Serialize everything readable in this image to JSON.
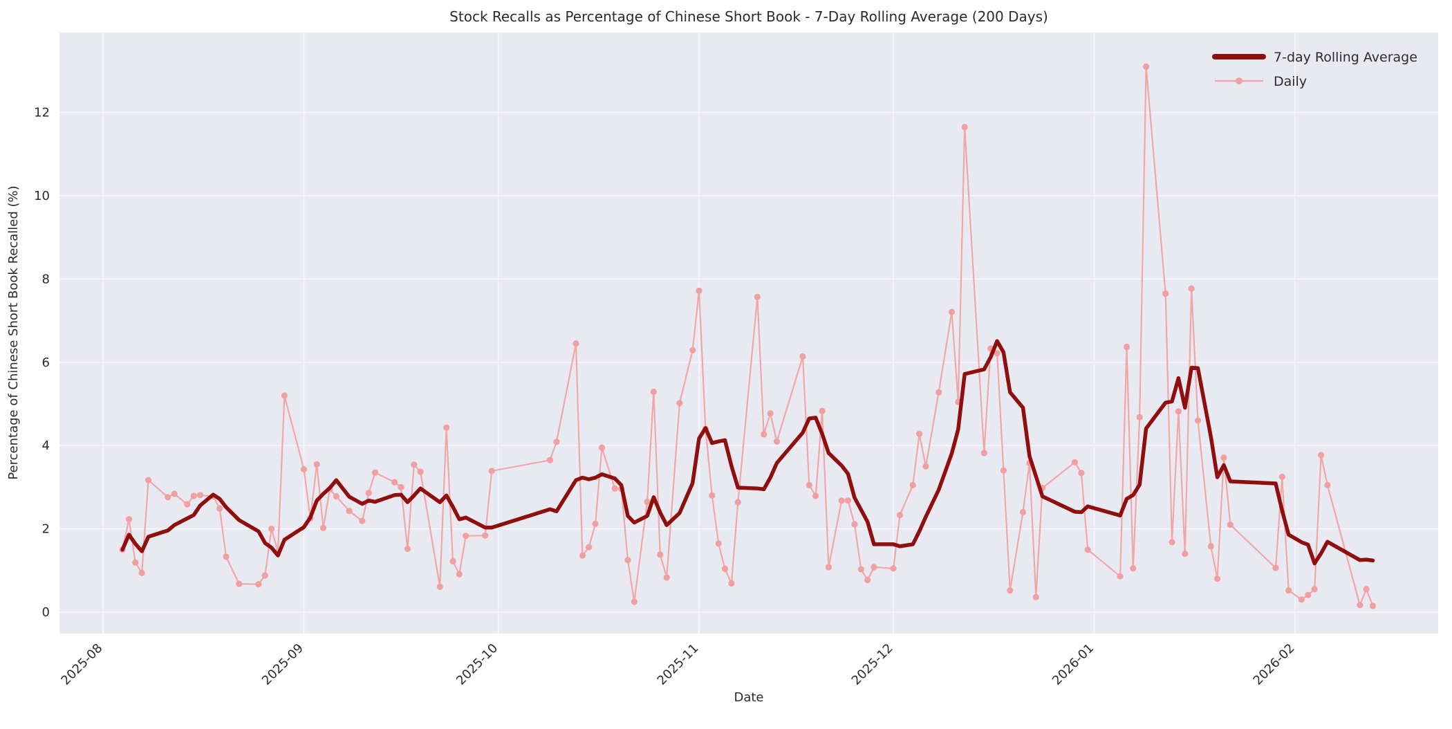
{
  "figure": {
    "title": "Stock Recalls as Percentage of Chinese Short Book - 7-Day Rolling Average (200 Days)",
    "xlabel": "Date",
    "ylabel": "Percentage of Chinese Short Book Recalled (%)"
  },
  "legend": {
    "items": [
      {
        "label": "7-day Rolling Average",
        "swatch": "thick-line",
        "color": "#8f0f0f"
      },
      {
        "label": "Daily",
        "swatch": "line-with-marker",
        "color": "#f1a7a7"
      }
    ]
  },
  "colors": {
    "figure_background": "#ffffff",
    "plot_background": "#e9e9f2",
    "gridline": "#f7f7fb",
    "rolling_line": "#8f0f0f",
    "daily_line": "#f1a7a7",
    "daily_marker": "#efa0a0",
    "text": "#2b2b2b"
  },
  "chart_data": {
    "type": "line",
    "title": "Stock Recalls as Percentage of Chinese Short Book - 7-Day Rolling Average (200 Days)",
    "xlabel": "Date",
    "ylabel": "Percentage of Chinese Short Book Recalled (%)",
    "grid": true,
    "legend_position": "upper right",
    "ylim": [
      -0.5,
      13.9
    ],
    "y_ticks": [
      0,
      2,
      4,
      6,
      8,
      10,
      12
    ],
    "x_tick_labels": [
      "2025-08",
      "2025-09",
      "2025-10",
      "2025-11",
      "2025-12",
      "2026-01",
      "2026-02"
    ],
    "x_tick_dates": [
      "2025-08-01",
      "2025-09-01",
      "2025-10-01",
      "2025-11-01",
      "2025-12-01",
      "2026-01-01",
      "2026-02-01"
    ],
    "x": [
      "2025-08-04",
      "2025-08-05",
      "2025-08-06",
      "2025-08-07",
      "2025-08-08",
      "2025-08-11",
      "2025-08-12",
      "2025-08-14",
      "2025-08-15",
      "2025-08-16",
      "2025-08-18",
      "2025-08-19",
      "2025-08-20",
      "2025-08-22",
      "2025-08-25",
      "2025-08-26",
      "2025-08-27",
      "2025-08-28",
      "2025-08-29",
      "2025-09-01",
      "2025-09-02",
      "2025-09-03",
      "2025-09-04",
      "2025-09-05",
      "2025-09-06",
      "2025-09-08",
      "2025-09-10",
      "2025-09-11",
      "2025-09-12",
      "2025-09-15",
      "2025-09-16",
      "2025-09-17",
      "2025-09-18",
      "2025-09-19",
      "2025-09-22",
      "2025-09-23",
      "2025-09-24",
      "2025-09-25",
      "2025-09-26",
      "2025-09-29",
      "2025-09-30",
      "2025-10-09",
      "2025-10-10",
      "2025-10-13",
      "2025-10-14",
      "2025-10-15",
      "2025-10-16",
      "2025-10-17",
      "2025-10-19",
      "2025-10-20",
      "2025-10-21",
      "2025-10-22",
      "2025-10-24",
      "2025-10-25",
      "2025-10-26",
      "2025-10-27",
      "2025-10-29",
      "2025-10-31",
      "2025-11-01",
      "2025-11-02",
      "2025-11-03",
      "2025-11-04",
      "2025-11-05",
      "2025-11-06",
      "2025-11-07",
      "2025-11-10",
      "2025-11-11",
      "2025-11-12",
      "2025-11-13",
      "2025-11-17",
      "2025-11-18",
      "2025-11-19",
      "2025-11-20",
      "2025-11-21",
      "2025-11-23",
      "2025-11-24",
      "2025-11-25",
      "2025-11-26",
      "2025-11-27",
      "2025-11-28",
      "2025-12-01",
      "2025-12-02",
      "2025-12-04",
      "2025-12-05",
      "2025-12-06",
      "2025-12-08",
      "2025-12-10",
      "2025-12-11",
      "2025-12-12",
      "2025-12-15",
      "2025-12-16",
      "2025-12-17",
      "2025-12-18",
      "2025-12-19",
      "2025-12-21",
      "2025-12-22",
      "2025-12-23",
      "2025-12-24",
      "2025-12-29",
      "2025-12-30",
      "2025-12-31",
      "2026-01-05",
      "2026-01-06",
      "2026-01-07",
      "2026-01-08",
      "2026-01-09",
      "2026-01-12",
      "2026-01-13",
      "2026-01-14",
      "2026-01-15",
      "2026-01-16",
      "2026-01-17",
      "2026-01-19",
      "2026-01-20",
      "2026-01-21",
      "2026-01-22",
      "2026-01-29",
      "2026-01-30",
      "2026-01-31",
      "2026-02-02",
      "2026-02-03",
      "2026-02-04",
      "2026-02-05",
      "2026-02-06",
      "2026-02-11",
      "2026-02-12",
      "2026-02-13"
    ],
    "series": [
      {
        "name": "Daily",
        "values": [
          1.5,
          2.23,
          1.19,
          0.94,
          3.17,
          2.76,
          2.84,
          2.59,
          2.79,
          2.81,
          2.78,
          2.49,
          1.33,
          0.68,
          0.67,
          0.88,
          2.0,
          1.45,
          5.2,
          3.43,
          2.25,
          3.55,
          2.02,
          2.95,
          2.78,
          2.43,
          2.19,
          2.86,
          3.35,
          3.12,
          3.0,
          1.52,
          3.54,
          3.37,
          0.61,
          4.43,
          1.22,
          0.91,
          1.83,
          1.84,
          3.39,
          3.65,
          4.09,
          6.45,
          1.36,
          1.56,
          2.12,
          3.95,
          2.97,
          2.96,
          1.25,
          0.25,
          2.65,
          5.29,
          1.38,
          0.83,
          5.02,
          6.29,
          7.72,
          4.4,
          2.8,
          1.65,
          1.04,
          0.69,
          2.64,
          7.57,
          4.27,
          4.77,
          4.1,
          6.14,
          3.05,
          2.79,
          4.83,
          1.08,
          2.68,
          2.68,
          2.11,
          1.03,
          0.77,
          1.08,
          1.05,
          2.33,
          3.05,
          4.28,
          3.5,
          5.28,
          7.21,
          5.05,
          11.65,
          3.82,
          6.33,
          6.22,
          3.4,
          0.52,
          2.4,
          3.58,
          0.36,
          2.98,
          3.6,
          3.34,
          1.5,
          0.86,
          6.37,
          1.05,
          4.68,
          13.1,
          7.65,
          1.68,
          4.82,
          1.4,
          7.77,
          4.6,
          1.58,
          0.8,
          3.71,
          2.1,
          1.06,
          3.25,
          0.52,
          0.3,
          0.41,
          0.55,
          3.77,
          3.05,
          0.17,
          0.55,
          0.15
        ]
      },
      {
        "name": "7-day Rolling Average",
        "values": [
          1.5,
          1.86,
          1.64,
          1.46,
          1.81,
          1.96,
          2.09,
          2.25,
          2.33,
          2.56,
          2.82,
          2.72,
          2.52,
          2.21,
          1.94,
          1.66,
          1.55,
          1.36,
          1.74,
          2.04,
          2.27,
          2.68,
          2.84,
          2.98,
          3.17,
          2.77,
          2.6,
          2.68,
          2.65,
          2.81,
          2.82,
          2.64,
          2.8,
          2.97,
          2.64,
          2.8,
          2.53,
          2.23,
          2.27,
          2.03,
          2.03,
          2.47,
          2.42,
          3.17,
          3.23,
          3.19,
          3.23,
          3.31,
          3.21,
          3.05,
          2.31,
          2.15,
          2.31,
          2.76,
          2.39,
          2.09,
          2.38,
          3.1,
          4.17,
          4.42,
          4.06,
          4.1,
          4.13,
          3.51,
          2.99,
          2.97,
          2.95,
          3.23,
          3.58,
          4.31,
          4.65,
          4.67,
          4.28,
          3.82,
          3.52,
          3.32,
          2.75,
          2.46,
          2.17,
          1.63,
          1.63,
          1.58,
          1.63,
          1.94,
          2.29,
          2.94,
          3.81,
          4.39,
          5.72,
          5.83,
          6.12,
          6.51,
          6.24,
          5.28,
          4.91,
          3.75,
          3.26,
          2.78,
          2.41,
          2.4,
          2.54,
          2.32,
          2.72,
          2.81,
          3.06,
          4.41,
          5.03,
          5.06,
          5.62,
          4.91,
          5.87,
          5.86,
          4.21,
          3.24,
          3.53,
          3.14,
          3.09,
          2.44,
          1.86,
          1.68,
          1.62,
          1.17,
          1.41,
          1.69,
          1.25,
          1.26,
          1.24
        ]
      }
    ]
  }
}
